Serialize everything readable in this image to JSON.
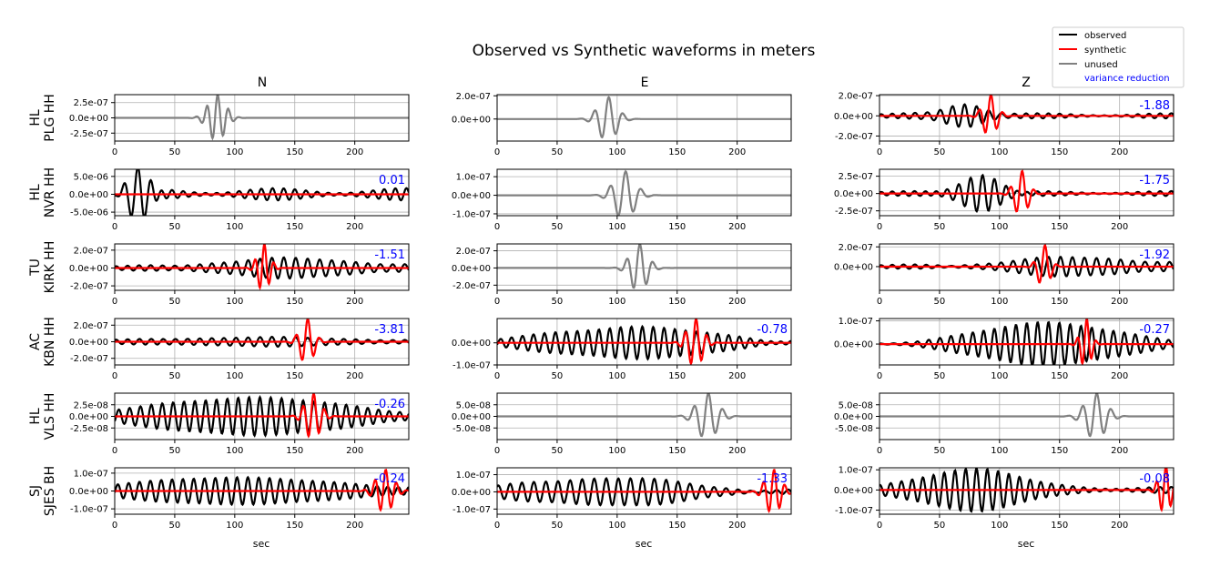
{
  "title": "Observed vs Synthetic waveforms in meters",
  "components": [
    "N",
    "E",
    "Z"
  ],
  "xlabel": "sec",
  "legend": {
    "placement": "top-right",
    "items": [
      {
        "label": "observed",
        "color": "#000000",
        "kind": "line"
      },
      {
        "label": "synthetic",
        "color": "#ff0000",
        "kind": "line"
      },
      {
        "label": "unused",
        "color": "#808080",
        "kind": "line"
      },
      {
        "label": "variance reduction",
        "color": "#0000ff",
        "kind": "text"
      }
    ]
  },
  "colors": {
    "observed": "#000000",
    "synthetic": "#ff0000",
    "unused": "#808080",
    "vr": "#0000ff",
    "grid": "#b0b0b0"
  },
  "chart_data": {
    "type": "line",
    "grid": true,
    "xlim": [
      0,
      245
    ],
    "xticks": [
      0,
      50,
      100,
      150,
      200
    ],
    "stations": [
      {
        "label_line1": "HL",
        "label_line2": "PLG HH",
        "panels": [
          {
            "used": false,
            "vr": "",
            "ylim": [
              -3.8e-07,
              3.8e-07
            ],
            "yticks": [
              2.5e-07,
              0,
              -2.5e-07
            ],
            "yticklabels": [
              "2.5e-07",
              "0.0e+00",
              "-2.5e-07"
            ],
            "observed": {
              "center": 85,
              "width": 10,
              "period": 9,
              "amp": 3.8e-07
            },
            "synthetic": {
              "center": 0,
              "width": 1,
              "period": 10,
              "amp": 0
            }
          },
          {
            "used": false,
            "vr": "",
            "ylim": [
              -1.9e-07,
              2.1e-07
            ],
            "yticks": [
              2e-07,
              0
            ],
            "yticklabels": [
              "2.0e-07",
              "0.0e+00"
            ],
            "observed": {
              "center": 92,
              "width": 11,
              "period": 12,
              "amp": 1.9e-07
            },
            "synthetic": {
              "center": 0,
              "width": 1,
              "period": 10,
              "amp": 0
            }
          },
          {
            "used": true,
            "vr": "-1.88",
            "ylim": [
              -2.5e-07,
              2.1e-07
            ],
            "yticks": [
              2e-07,
              0,
              -2e-07
            ],
            "yticklabels": [
              "2.0e-07",
              "0.0e+00",
              "-2.0e-07"
            ],
            "observed": {
              "center": 70,
              "width": 25,
              "period": 10,
              "amp": 1.2e-07,
              "noise": 2.5e-08
            },
            "synthetic": {
              "center": 92,
              "width": 8,
              "period": 10,
              "amp": 2.1e-07
            }
          }
        ]
      },
      {
        "label_line1": "HL",
        "label_line2": "NVR HH",
        "panels": [
          {
            "used": true,
            "vr": "0.01",
            "ylim": [
              -6e-06,
              7e-06
            ],
            "yticks": [
              5e-06,
              0,
              -5e-06
            ],
            "yticklabels": [
              "5.0e-06",
              "0.0e+00",
              "-5.0e-06"
            ],
            "observed": {
              "center": 18,
              "width": 14,
              "period": 12,
              "amp": 6.2e-06,
              "noise": 1.7e-06
            },
            "synthetic": {
              "center": 0,
              "width": 1,
              "period": 10,
              "amp": 0
            }
          },
          {
            "used": false,
            "vr": "",
            "ylim": [
              -1.1e-07,
              1.4e-07
            ],
            "yticks": [
              1e-07,
              0,
              -1e-07
            ],
            "yticklabels": [
              "1.0e-07",
              "0.0e+00",
              "-1.0e-07"
            ],
            "observed": {
              "center": 106,
              "width": 12,
              "period": 13,
              "amp": 1.3e-07
            },
            "synthetic": {
              "center": 0,
              "width": 1,
              "period": 10,
              "amp": 0
            }
          },
          {
            "used": true,
            "vr": "-1.75",
            "ylim": [
              -3.2e-07,
              3.5e-07
            ],
            "yticks": [
              2.5e-07,
              0,
              -2.5e-07
            ],
            "yticklabels": [
              "2.5e-07",
              "0.0e+00",
              "-2.5e-07"
            ],
            "observed": {
              "center": 85,
              "width": 22,
              "period": 10,
              "amp": 2.6e-07,
              "noise": 3.5e-08
            },
            "synthetic": {
              "center": 118,
              "width": 8,
              "period": 10,
              "amp": 3.3e-07
            }
          }
        ]
      },
      {
        "label_line1": "TU",
        "label_line2": "KIRK HH",
        "panels": [
          {
            "used": true,
            "vr": "-1.51",
            "ylim": [
              -2.5e-07,
              2.7e-07
            ],
            "yticks": [
              2e-07,
              0,
              -2e-07
            ],
            "yticklabels": [
              "2.0e-07",
              "0.0e+00",
              "-2.0e-07"
            ],
            "observed": {
              "center": 150,
              "width": 90,
              "period": 10,
              "amp": 1e-07,
              "noise": 2e-08
            },
            "synthetic": {
              "center": 124,
              "width": 7,
              "period": 8,
              "amp": 2.7e-07
            }
          },
          {
            "used": false,
            "vr": "",
            "ylim": [
              -2.6e-07,
              2.8e-07
            ],
            "yticks": [
              2e-07,
              0,
              -2e-07
            ],
            "yticklabels": [
              "2.0e-07",
              "0.0e+00",
              "-2.0e-07"
            ],
            "observed": {
              "center": 118,
              "width": 10,
              "period": 11,
              "amp": 2.8e-07
            },
            "synthetic": {
              "center": 0,
              "width": 1,
              "period": 10,
              "amp": 0
            }
          },
          {
            "used": true,
            "vr": "-1.92",
            "ylim": [
              -2.4e-07,
              2.3e-07
            ],
            "yticks": [
              2e-07,
              0
            ],
            "yticklabels": [
              "2.0e-07",
              "0.0e+00"
            ],
            "observed": {
              "center": 170,
              "width": 80,
              "period": 10,
              "amp": 9e-08,
              "noise": 2e-08
            },
            "synthetic": {
              "center": 137,
              "width": 7,
              "period": 10,
              "amp": 2.2e-07
            }
          }
        ]
      },
      {
        "label_line1": "AC",
        "label_line2": "KBN HH",
        "panels": [
          {
            "used": true,
            "vr": "-3.81",
            "ylim": [
              -2.8e-07,
              2.8e-07
            ],
            "yticks": [
              2e-07,
              0,
              -2e-07
            ],
            "yticklabels": [
              "2.0e-07",
              "0.0e+00",
              "-2.0e-07"
            ],
            "observed": {
              "center": 120,
              "width": 120,
              "period": 10,
              "amp": 5e-08,
              "noise": 1e-08
            },
            "synthetic": {
              "center": 160,
              "width": 8,
              "period": 10,
              "amp": 2.8e-07
            }
          },
          {
            "used": true,
            "vr": "-0.78",
            "ylim": [
              -1e-07,
              1.1e-07
            ],
            "yticks": [
              0,
              -1e-07
            ],
            "yticklabels": [
              "0.0e+00",
              "-1.0e-07"
            ],
            "observed": {
              "center": 120,
              "width": 100,
              "period": 9,
              "amp": 6.5e-08,
              "noise": 1.5e-08
            },
            "synthetic": {
              "center": 165,
              "width": 9,
              "period": 9,
              "amp": 1.1e-07
            }
          },
          {
            "used": true,
            "vr": "-0.27",
            "ylim": [
              -9e-08,
              1.1e-07
            ],
            "yticks": [
              1e-07,
              0
            ],
            "yticklabels": [
              "1.0e-07",
              "0.0e+00"
            ],
            "observed": {
              "center": 140,
              "width": 90,
              "period": 9,
              "amp": 8e-08,
              "noise": 1.5e-08
            },
            "synthetic": {
              "center": 172,
              "width": 6,
              "period": 8,
              "amp": 1.1e-07
            }
          }
        ]
      },
      {
        "label_line1": "HL",
        "label_line2": "VLS HH",
        "panels": [
          {
            "used": true,
            "vr": "-0.26",
            "ylim": [
              -5e-08,
              5e-08
            ],
            "yticks": [
              2.5e-08,
              0,
              -2.5e-08
            ],
            "yticklabels": [
              "2.5e-08",
              "0.0e+00",
              "-2.5e-08"
            ],
            "observed": {
              "center": 120,
              "width": 120,
              "period": 9,
              "amp": 3.8e-08,
              "noise": 6e-09
            },
            "synthetic": {
              "center": 165,
              "width": 9,
              "period": 9,
              "amp": 5e-08
            }
          },
          {
            "used": false,
            "vr": "",
            "ylim": [
              -1e-07,
              1e-07
            ],
            "yticks": [
              5e-08,
              0,
              -5e-08
            ],
            "yticklabels": [
              "5.0e-08",
              "0.0e+00",
              "-5.0e-08"
            ],
            "observed": {
              "center": 175,
              "width": 12,
              "period": 12,
              "amp": 1e-07
            },
            "synthetic": {
              "center": 0,
              "width": 1,
              "period": 10,
              "amp": 0
            }
          },
          {
            "used": false,
            "vr": "",
            "ylim": [
              -1e-07,
              1e-07
            ],
            "yticks": [
              5e-08,
              0,
              -5e-08
            ],
            "yticklabels": [
              "5.0e-08",
              "0.0e+00",
              "-5.0e-08"
            ],
            "observed": {
              "center": 180,
              "width": 12,
              "period": 12,
              "amp": 1e-07
            },
            "synthetic": {
              "center": 0,
              "width": 1,
              "period": 10,
              "amp": 0
            }
          }
        ]
      },
      {
        "label_line1": "SJ",
        "label_line2": "SJES BH",
        "panels": [
          {
            "used": true,
            "vr": "-0.24",
            "ylim": [
              -1.3e-07,
              1.3e-07
            ],
            "yticks": [
              1e-07,
              0,
              -1e-07
            ],
            "yticklabels": [
              "1.0e-07",
              "0.0e+00",
              "-1.0e-07"
            ],
            "observed": {
              "center": 110,
              "width": 120,
              "period": 9,
              "amp": 7.5e-08,
              "noise": 1e-08
            },
            "synthetic": {
              "center": 225,
              "width": 10,
              "period": 9,
              "amp": 1.2e-07
            }
          },
          {
            "used": true,
            "vr": "-1.33",
            "ylim": [
              -1.3e-07,
              1.4e-07
            ],
            "yticks": [
              1e-07,
              0,
              -1e-07
            ],
            "yticklabels": [
              "1.0e-07",
              "0.0e+00",
              "-1.0e-07"
            ],
            "observed": {
              "center": 90,
              "width": 90,
              "period": 10,
              "amp": 8e-08,
              "noise": 1.2e-08
            },
            "synthetic": {
              "center": 230,
              "width": 9,
              "period": 9,
              "amp": 1.3e-07
            }
          },
          {
            "used": true,
            "vr": "-0.08",
            "ylim": [
              -1.2e-07,
              1.1e-07
            ],
            "yticks": [
              1e-07,
              0,
              -1e-07
            ],
            "yticklabels": [
              "1.0e-07",
              "0.0e+00",
              "-1.0e-07"
            ],
            "observed": {
              "center": 80,
              "width": 60,
              "period": 9,
              "amp": 1.1e-07,
              "noise": 1.5e-08
            },
            "synthetic": {
              "center": 238,
              "width": 7,
              "period": 8,
              "amp": 1.2e-07
            }
          }
        ]
      }
    ]
  }
}
